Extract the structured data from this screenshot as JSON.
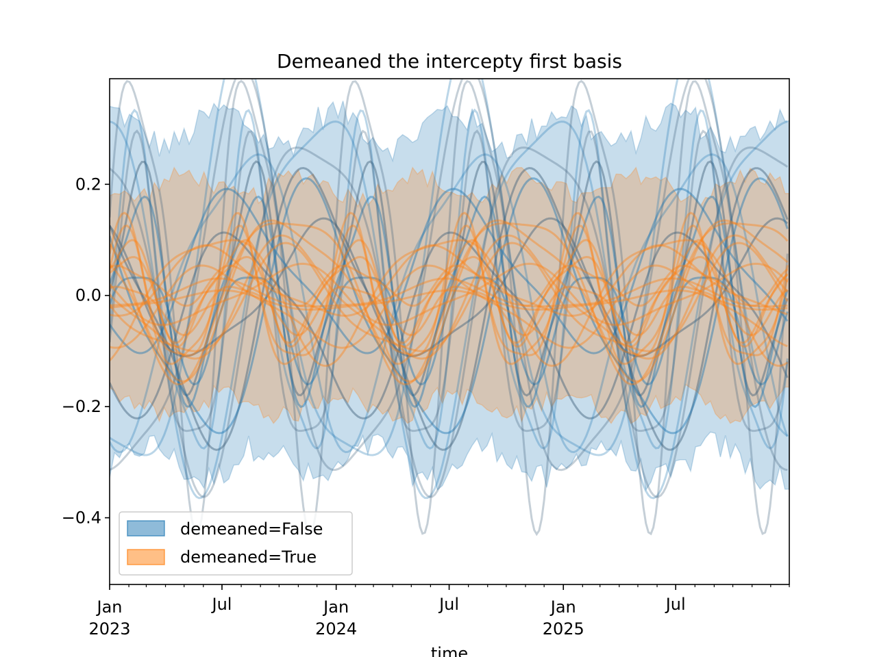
{
  "chart_data": {
    "type": "area",
    "title": "Demeaned the intercepty first basis",
    "xlabel": "time",
    "ylabel": "",
    "x_range": [
      "2023-01-01",
      "2025-12-31"
    ],
    "ylim": [
      -0.52,
      0.39
    ],
    "y_ticks": [
      {
        "value": 0.2,
        "label": "0.2"
      },
      {
        "value": 0.0,
        "label": "0.0"
      },
      {
        "value": -0.2,
        "label": "−0.2"
      },
      {
        "value": -0.4,
        "label": "−0.4"
      }
    ],
    "x_ticks": [
      {
        "date": "2023-01-01",
        "label": "Jan",
        "sublabel": "2023"
      },
      {
        "date": "2023-07-01",
        "label": "Jul",
        "sublabel": ""
      },
      {
        "date": "2024-01-01",
        "label": "Jan",
        "sublabel": "2024"
      },
      {
        "date": "2024-07-01",
        "label": "Jul",
        "sublabel": ""
      },
      {
        "date": "2025-01-01",
        "label": "Jan",
        "sublabel": "2025"
      },
      {
        "date": "2025-07-01",
        "label": "Jul",
        "sublabel": ""
      }
    ],
    "grid": false,
    "legend_position": "lower-left",
    "series": [
      {
        "name": "demeaned=False",
        "color": "#1f77b4",
        "band_envelope": {
          "upper_approx": [
            0.26,
            0.35
          ],
          "lower_approx": [
            -0.35,
            -0.26
          ]
        },
        "curve_count": 16,
        "curve_amplitude_range": [
          0.12,
          0.48
        ],
        "period": "1 year"
      },
      {
        "name": "demeaned=True",
        "color": "#ff7f0e",
        "band_envelope": {
          "upper_approx": [
            0.17,
            0.23
          ],
          "lower_approx": [
            -0.23,
            -0.17
          ]
        },
        "curve_count": 16,
        "curve_amplitude_range": [
          0.02,
          0.18
        ],
        "period": "1 year"
      }
    ]
  }
}
